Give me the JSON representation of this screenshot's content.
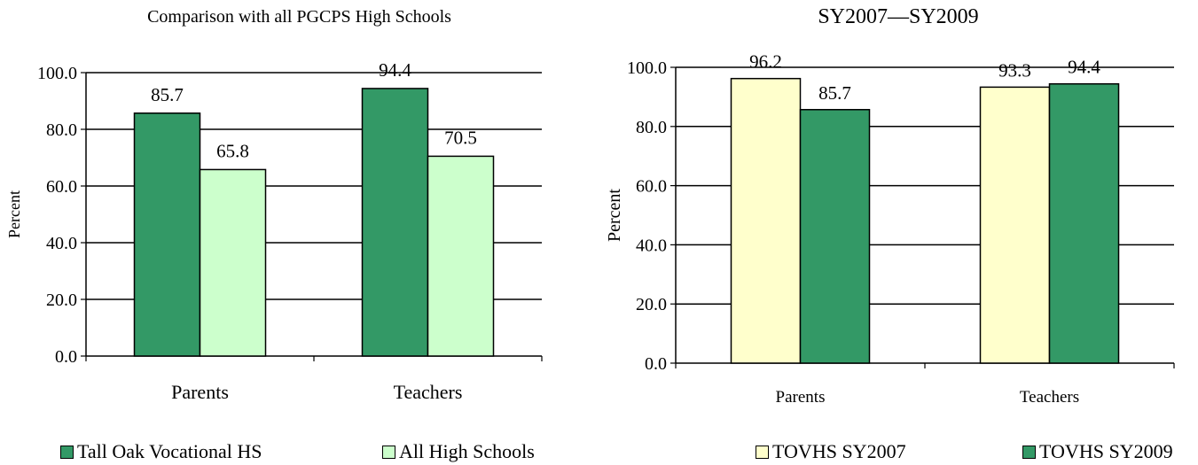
{
  "colors": {
    "tall_oak": "#339966",
    "all_hs": "#ccffcc",
    "sy2007": "#ffffcc",
    "sy2009": "#339966"
  },
  "chart_data": [
    {
      "type": "bar",
      "title": "Comparison with all PGCPS High Schools",
      "xlabel": "",
      "ylabel": "Percent",
      "categories": [
        "Parents",
        "Teachers"
      ],
      "ylim": [
        0,
        100
      ],
      "yticks": [
        "0.0",
        "20.0",
        "40.0",
        "60.0",
        "80.0",
        "100.0"
      ],
      "grid": true,
      "legend": "bottom",
      "series": [
        {
          "name": "Tall Oak Vocational HS",
          "values": [
            85.7,
            94.4
          ],
          "labels": [
            "85.7",
            "94.4"
          ],
          "color": "#339966"
        },
        {
          "name": "All High Schools",
          "values": [
            65.8,
            70.5
          ],
          "labels": [
            "65.8",
            "70.5"
          ],
          "color": "#ccffcc"
        }
      ]
    },
    {
      "type": "bar",
      "title": "SY2007—SY2009",
      "xlabel": "",
      "ylabel": "Percent",
      "categories": [
        "Parents",
        "Teachers"
      ],
      "ylim": [
        0,
        100
      ],
      "yticks": [
        "0.0",
        "20.0",
        "40.0",
        "60.0",
        "80.0",
        "100.0"
      ],
      "grid": true,
      "legend": "bottom",
      "series": [
        {
          "name": "TOVHS SY2007",
          "values": [
            96.2,
            93.3
          ],
          "labels": [
            "96.2",
            "93.3"
          ],
          "color": "#ffffcc"
        },
        {
          "name": "TOVHS SY2009",
          "values": [
            85.7,
            94.4
          ],
          "labels": [
            "85.7",
            "94.4"
          ],
          "color": "#339966"
        }
      ]
    }
  ]
}
